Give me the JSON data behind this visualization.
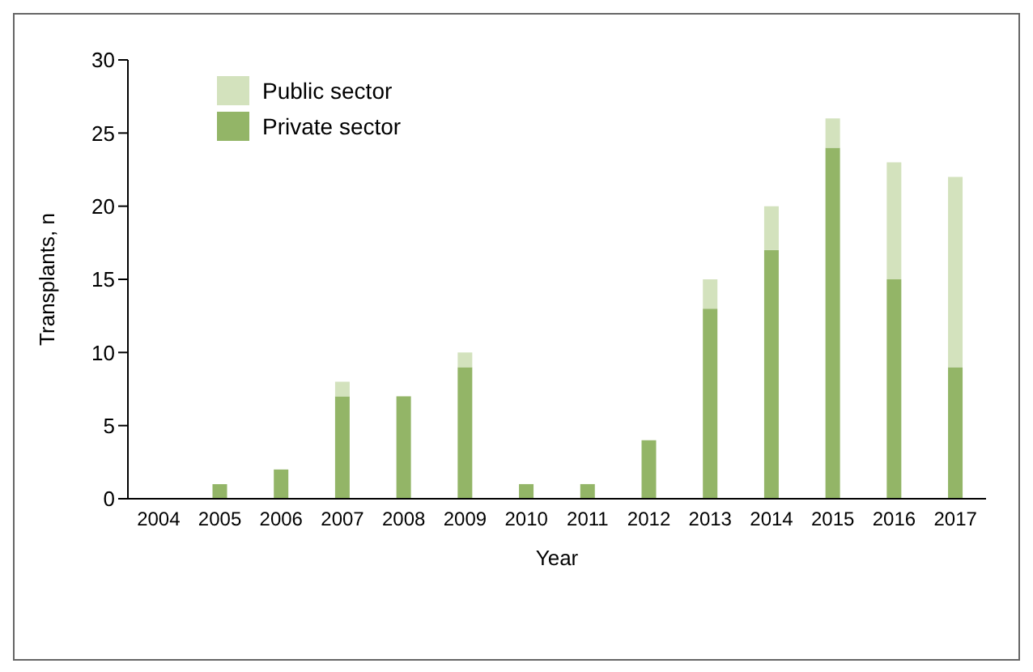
{
  "chart_data": {
    "type": "bar",
    "xlabel": "Year",
    "ylabel": "Transplants, n",
    "categories": [
      "2004",
      "2005",
      "2006",
      "2007",
      "2008",
      "2009",
      "2010",
      "2011",
      "2012",
      "2013",
      "2014",
      "2015",
      "2016",
      "2017"
    ],
    "stacked": true,
    "series": [
      {
        "name": "Private sector",
        "color": "#93b567",
        "values": [
          0,
          1,
          2,
          7,
          7,
          9,
          1,
          1,
          4,
          13,
          17,
          24,
          15,
          9
        ]
      },
      {
        "name": "Public sector",
        "color": "#d3e2bd",
        "values": [
          0,
          0,
          0,
          1,
          0,
          1,
          0,
          0,
          0,
          2,
          3,
          2,
          8,
          13
        ]
      }
    ],
    "ylim": [
      0,
      30
    ],
    "yticks": [
      0,
      5,
      10,
      15,
      20,
      25,
      30
    ],
    "grid": false,
    "legend": "top left"
  }
}
